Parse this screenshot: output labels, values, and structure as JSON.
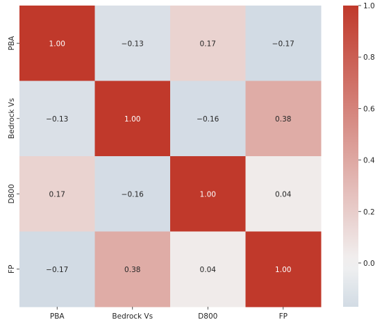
{
  "chart_data": {
    "type": "heatmap",
    "title": "",
    "row_labels": [
      "PBA",
      "Bedrock Vs",
      "D800",
      "FP"
    ],
    "col_labels": [
      "PBA",
      "Bedrock Vs",
      "D800",
      "FP"
    ],
    "values": [
      [
        1.0,
        -0.13,
        0.17,
        -0.17
      ],
      [
        -0.13,
        1.0,
        -0.16,
        0.38
      ],
      [
        0.17,
        -0.16,
        1.0,
        0.04
      ],
      [
        -0.17,
        0.38,
        0.04,
        1.0
      ]
    ],
    "cell_text": [
      [
        "1.00",
        "−0.13",
        "0.17",
        "−0.17"
      ],
      [
        "−0.13",
        "1.00",
        "−0.16",
        "0.38"
      ],
      [
        "0.17",
        "−0.16",
        "1.00",
        "0.04"
      ],
      [
        "−0.17",
        "0.38",
        "0.04",
        "1.00"
      ]
    ],
    "colorbar": {
      "range": [
        -0.17,
        1.0
      ],
      "ticks": [
        1.0,
        0.8,
        0.6,
        0.4,
        0.2,
        0.0
      ],
      "tick_labels": [
        "1.0",
        "0.8",
        "0.6",
        "0.4",
        "0.2",
        "0.0"
      ],
      "colors": {
        "low": "#d2dbe4",
        "mid": "#f2f2f2",
        "high": "#c0392b"
      }
    }
  }
}
